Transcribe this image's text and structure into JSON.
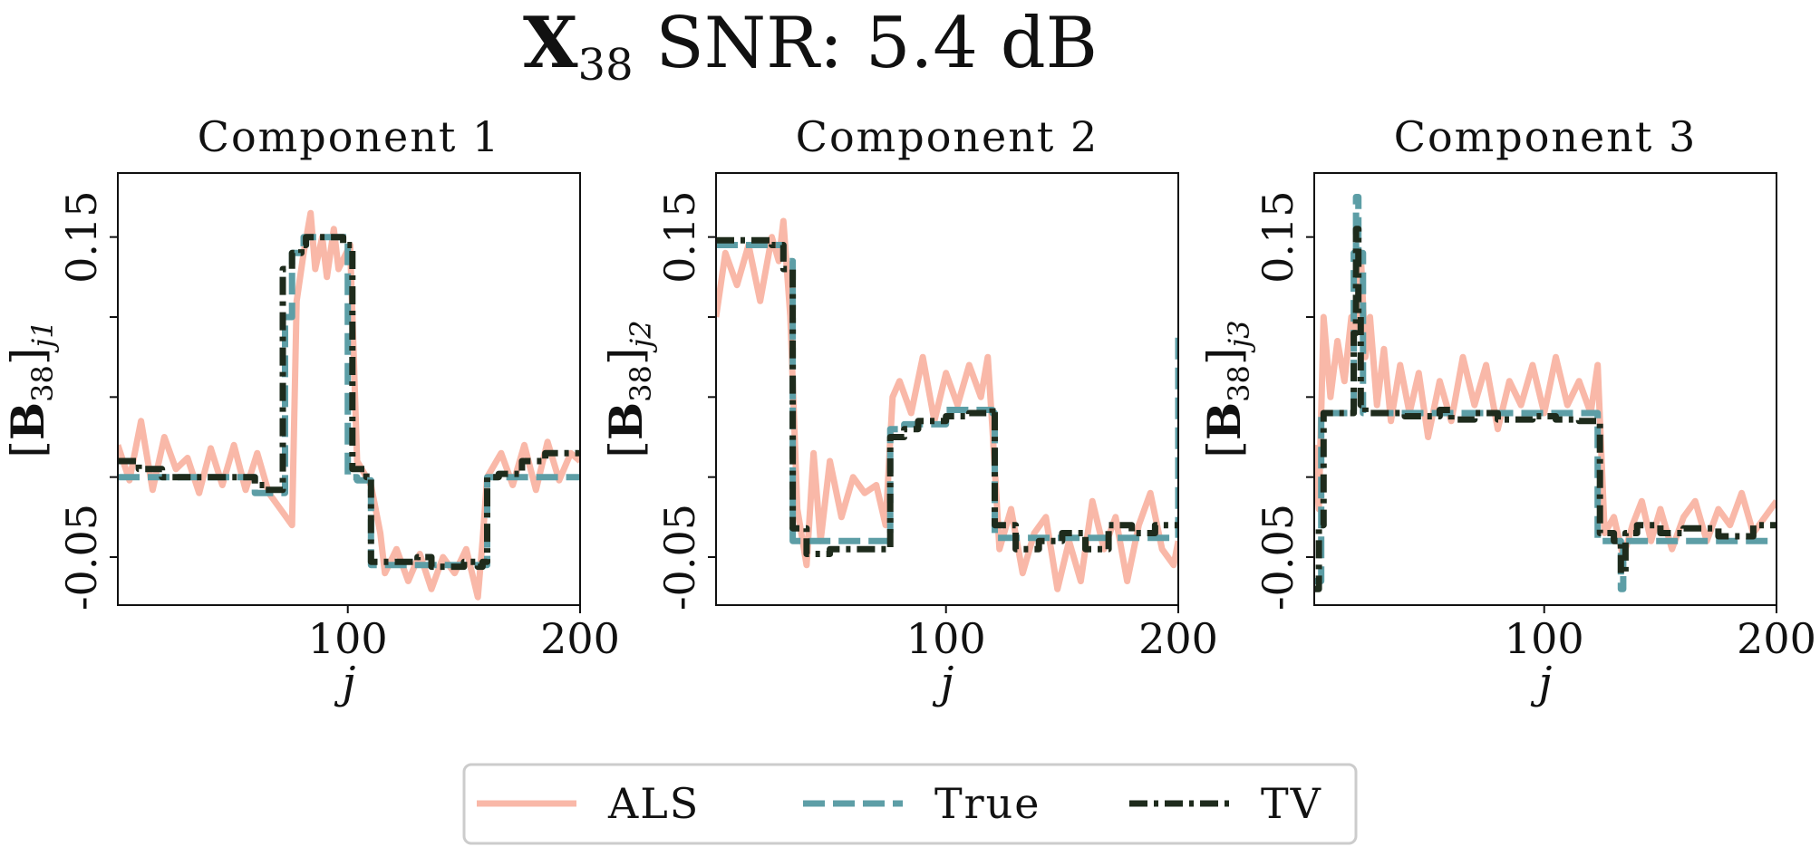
{
  "figure": {
    "suptitle_main": "X",
    "suptitle_sub": "38",
    "suptitle_rest": " SNR: 5.4 dB"
  },
  "colors": {
    "ALS": "#f9b8a8",
    "True": "#5d9ea6",
    "TV": "#1e2b1c",
    "axes": "#111111",
    "legend_border": "#cccccc"
  },
  "legend": {
    "entries": [
      {
        "label": "ALS",
        "style": "solid"
      },
      {
        "label": "True",
        "style": "dashed"
      },
      {
        "label": "TV",
        "style": "dashdot"
      }
    ],
    "placement": "bottom-center"
  },
  "chart_data": [
    {
      "type": "line",
      "title": "Component 1",
      "xlabel": "j",
      "ylabel": {
        "bracket_open": "[",
        "bold": "B",
        "sub": "38",
        "bracket_close": "]",
        "index": "j1"
      },
      "xlim": [
        1,
        200
      ],
      "ylim": [
        -0.08,
        0.19
      ],
      "xticks": [
        100,
        200
      ],
      "xtick_labels": [
        "100",
        "200"
      ],
      "yticks": [
        -0.05,
        0.0,
        0.05,
        0.1,
        0.15
      ],
      "ytick_labels": [
        "-0.05",
        "",
        "",
        "",
        "0.15"
      ],
      "grid": false,
      "series": [
        {
          "name": "ALS",
          "x": [
            1,
            6,
            11,
            16,
            21,
            26,
            31,
            36,
            41,
            46,
            51,
            56,
            61,
            66,
            71,
            76,
            78,
            81,
            84,
            86,
            89,
            91,
            94,
            96,
            101,
            104,
            106,
            110,
            114,
            116,
            121,
            126,
            131,
            136,
            141,
            146,
            151,
            156,
            158,
            160,
            166,
            171,
            176,
            181,
            186,
            191,
            196,
            200
          ],
          "y": [
            0.02,
            -0.002,
            0.035,
            -0.008,
            0.025,
            0.005,
            0.012,
            -0.01,
            0.018,
            -0.005,
            0.02,
            -0.008,
            0.015,
            -0.01,
            -0.02,
            -0.03,
            0.11,
            0.14,
            0.165,
            0.13,
            0.15,
            0.125,
            0.155,
            0.13,
            0.145,
            0.01,
            0.005,
            -0.005,
            -0.035,
            -0.06,
            -0.045,
            -0.065,
            -0.048,
            -0.07,
            -0.05,
            -0.06,
            -0.045,
            -0.075,
            -0.04,
            0.0,
            0.015,
            -0.005,
            0.02,
            -0.008,
            0.022,
            -0.002,
            0.015,
            0.01
          ]
        },
        {
          "name": "True",
          "x": [
            1,
            60,
            60,
            73,
            73,
            76,
            76,
            81,
            81,
            100,
            100,
            104,
            104,
            110,
            110,
            160,
            160,
            200
          ],
          "y": [
            0.0,
            0.0,
            -0.01,
            -0.01,
            0.1,
            0.1,
            0.14,
            0.14,
            0.15,
            0.15,
            0.0,
            0.0,
            -0.002,
            -0.002,
            -0.055,
            -0.055,
            0.0,
            0.0
          ]
        },
        {
          "name": "TV",
          "x": [
            1,
            10,
            10,
            20,
            20,
            60,
            60,
            64,
            64,
            72,
            72,
            76,
            76,
            80,
            80,
            82,
            82,
            98,
            98,
            102,
            102,
            108,
            108,
            110,
            110,
            130,
            130,
            136,
            136,
            150,
            150,
            156,
            156,
            158,
            158,
            160,
            160,
            165,
            165,
            175,
            175,
            185,
            185,
            200
          ],
          "y": [
            0.01,
            0.01,
            0.005,
            0.005,
            0.0,
            0.0,
            -0.005,
            -0.005,
            -0.008,
            -0.008,
            0.13,
            0.13,
            0.14,
            0.14,
            0.145,
            0.145,
            0.15,
            0.15,
            0.145,
            0.145,
            0.005,
            0.005,
            0.0,
            0.0,
            -0.053,
            -0.053,
            -0.05,
            -0.05,
            -0.056,
            -0.056,
            -0.053,
            -0.053,
            -0.056,
            -0.056,
            -0.053,
            -0.053,
            0.0,
            0.0,
            0.002,
            0.002,
            0.01,
            0.01,
            0.015,
            0.015
          ]
        }
      ]
    },
    {
      "type": "line",
      "title": "Component 2",
      "xlabel": "j",
      "ylabel": {
        "bracket_open": "[",
        "bold": "B",
        "sub": "38",
        "bracket_close": "]",
        "index": "j2"
      },
      "xlim": [
        1,
        200
      ],
      "ylim": [
        -0.08,
        0.19
      ],
      "xticks": [
        100,
        200
      ],
      "xtick_labels": [
        "100",
        "200"
      ],
      "yticks": [
        -0.05,
        0.0,
        0.05,
        0.1,
        0.15
      ],
      "ytick_labels": [
        "-0.05",
        "",
        "",
        "",
        "0.15"
      ],
      "grid": false,
      "series": [
        {
          "name": "ALS",
          "x": [
            1,
            5,
            10,
            15,
            20,
            25,
            28,
            30,
            33,
            36,
            40,
            43,
            46,
            50,
            55,
            60,
            65,
            70,
            74,
            77,
            80,
            85,
            90,
            95,
            100,
            105,
            110,
            115,
            118,
            120,
            123,
            128,
            133,
            138,
            143,
            148,
            153,
            158,
            163,
            168,
            173,
            178,
            183,
            188,
            193,
            198,
            200
          ],
          "y": [
            0.1,
            0.14,
            0.12,
            0.145,
            0.11,
            0.15,
            0.135,
            0.16,
            0.1,
            -0.02,
            -0.055,
            0.015,
            -0.04,
            0.01,
            -0.025,
            0.0,
            -0.01,
            -0.005,
            -0.03,
            0.05,
            0.06,
            0.04,
            0.075,
            0.035,
            0.065,
            0.045,
            0.07,
            0.05,
            0.075,
            0.03,
            -0.045,
            -0.02,
            -0.06,
            -0.035,
            -0.025,
            -0.07,
            -0.04,
            -0.065,
            -0.015,
            -0.045,
            -0.025,
            -0.065,
            -0.03,
            -0.01,
            -0.045,
            -0.055,
            -0.04
          ]
        },
        {
          "name": "True",
          "x": [
            1,
            30,
            30,
            34,
            34,
            76,
            76,
            82,
            82,
            100,
            100,
            120,
            120,
            121,
            121,
            200,
            200
          ],
          "y": [
            0.145,
            0.145,
            0.135,
            0.135,
            -0.04,
            -0.04,
            0.03,
            0.03,
            0.033,
            0.033,
            0.042,
            0.042,
            0.04,
            0.04,
            -0.038,
            -0.038,
            0.09
          ]
        },
        {
          "name": "TV",
          "x": [
            1,
            25,
            25,
            30,
            30,
            34,
            34,
            40,
            40,
            50,
            50,
            76,
            76,
            82,
            82,
            88,
            88,
            100,
            100,
            110,
            110,
            120,
            120,
            121,
            121,
            130,
            130,
            140,
            140,
            150,
            150,
            160,
            160,
            170,
            170,
            180,
            180,
            190,
            190,
            200
          ],
          "y": [
            0.148,
            0.148,
            0.145,
            0.145,
            0.13,
            0.13,
            -0.032,
            -0.032,
            -0.048,
            -0.048,
            -0.045,
            -0.045,
            0.025,
            0.025,
            0.03,
            0.03,
            0.035,
            0.035,
            0.038,
            0.038,
            0.04,
            0.04,
            0.043,
            0.043,
            -0.03,
            -0.03,
            -0.045,
            -0.045,
            -0.04,
            -0.04,
            -0.035,
            -0.035,
            -0.045,
            -0.045,
            -0.03,
            -0.03,
            -0.035,
            -0.035,
            -0.03,
            -0.03
          ]
        }
      ]
    },
    {
      "type": "line",
      "title": "Component 3",
      "xlabel": "j",
      "ylabel": {
        "bracket_open": "[",
        "bold": "B",
        "sub": "38",
        "bracket_close": "]",
        "index": "j3"
      },
      "xlim": [
        1,
        200
      ],
      "ylim": [
        -0.08,
        0.19
      ],
      "xticks": [
        100,
        200
      ],
      "xtick_labels": [
        "100",
        "200"
      ],
      "yticks": [
        -0.05,
        0.0,
        0.05,
        0.1,
        0.15
      ],
      "ytick_labels": [
        "-0.05",
        "",
        "",
        "",
        "0.15"
      ],
      "grid": false,
      "series": [
        {
          "name": "ALS",
          "x": [
            1,
            3,
            5,
            8,
            11,
            14,
            17,
            19,
            21,
            23,
            25,
            28,
            31,
            34,
            38,
            42,
            46,
            50,
            55,
            60,
            65,
            70,
            75,
            80,
            85,
            90,
            95,
            100,
            105,
            110,
            115,
            120,
            123,
            126,
            130,
            134,
            138,
            142,
            146,
            150,
            155,
            160,
            165,
            170,
            175,
            180,
            185,
            190,
            195,
            200
          ],
          "y": [
            0.02,
            -0.02,
            0.1,
            0.05,
            0.085,
            0.06,
            0.1,
            0.09,
            0.14,
            0.075,
            0.1,
            0.045,
            0.08,
            0.035,
            0.07,
            0.04,
            0.065,
            0.025,
            0.06,
            0.035,
            0.075,
            0.045,
            0.07,
            0.03,
            0.06,
            0.045,
            0.07,
            0.04,
            0.075,
            0.045,
            0.06,
            0.04,
            0.07,
            -0.035,
            -0.025,
            -0.05,
            -0.03,
            -0.015,
            -0.04,
            -0.02,
            -0.045,
            -0.025,
            -0.015,
            -0.04,
            -0.02,
            -0.03,
            -0.01,
            -0.035,
            -0.025,
            -0.015
          ]
        },
        {
          "name": "True",
          "x": [
            1,
            4,
            4,
            18,
            18,
            19,
            19,
            20,
            20,
            22,
            22,
            123,
            123,
            133,
            133,
            134,
            134,
            135,
            135,
            200
          ],
          "y": [
            -0.065,
            -0.065,
            0.04,
            0.04,
            0.14,
            0.14,
            0.175,
            0.175,
            0.14,
            0.14,
            0.04,
            0.04,
            -0.04,
            -0.04,
            -0.07,
            -0.07,
            -0.04,
            -0.04,
            -0.04,
            -0.04
          ]
        },
        {
          "name": "TV",
          "x": [
            1,
            3,
            3,
            5,
            5,
            18,
            18,
            19,
            19,
            20,
            20,
            21,
            21,
            23,
            23,
            40,
            40,
            55,
            55,
            60,
            60,
            70,
            70,
            80,
            80,
            95,
            95,
            105,
            105,
            115,
            115,
            124,
            124,
            130,
            130,
            133,
            133,
            135,
            135,
            140,
            140,
            150,
            150,
            160,
            160,
            175,
            175,
            190,
            190,
            200
          ],
          "y": [
            -0.07,
            -0.07,
            -0.03,
            -0.03,
            0.04,
            0.04,
            0.09,
            0.09,
            0.155,
            0.155,
            0.1,
            0.1,
            0.045,
            0.045,
            0.04,
            0.04,
            0.038,
            0.038,
            0.042,
            0.042,
            0.036,
            0.036,
            0.04,
            0.04,
            0.036,
            0.036,
            0.038,
            0.038,
            0.036,
            0.036,
            0.035,
            0.035,
            -0.035,
            -0.035,
            -0.04,
            -0.04,
            -0.06,
            -0.06,
            -0.035,
            -0.035,
            -0.03,
            -0.03,
            -0.035,
            -0.035,
            -0.032,
            -0.032,
            -0.037,
            -0.037,
            -0.03,
            -0.03
          ]
        }
      ]
    }
  ]
}
